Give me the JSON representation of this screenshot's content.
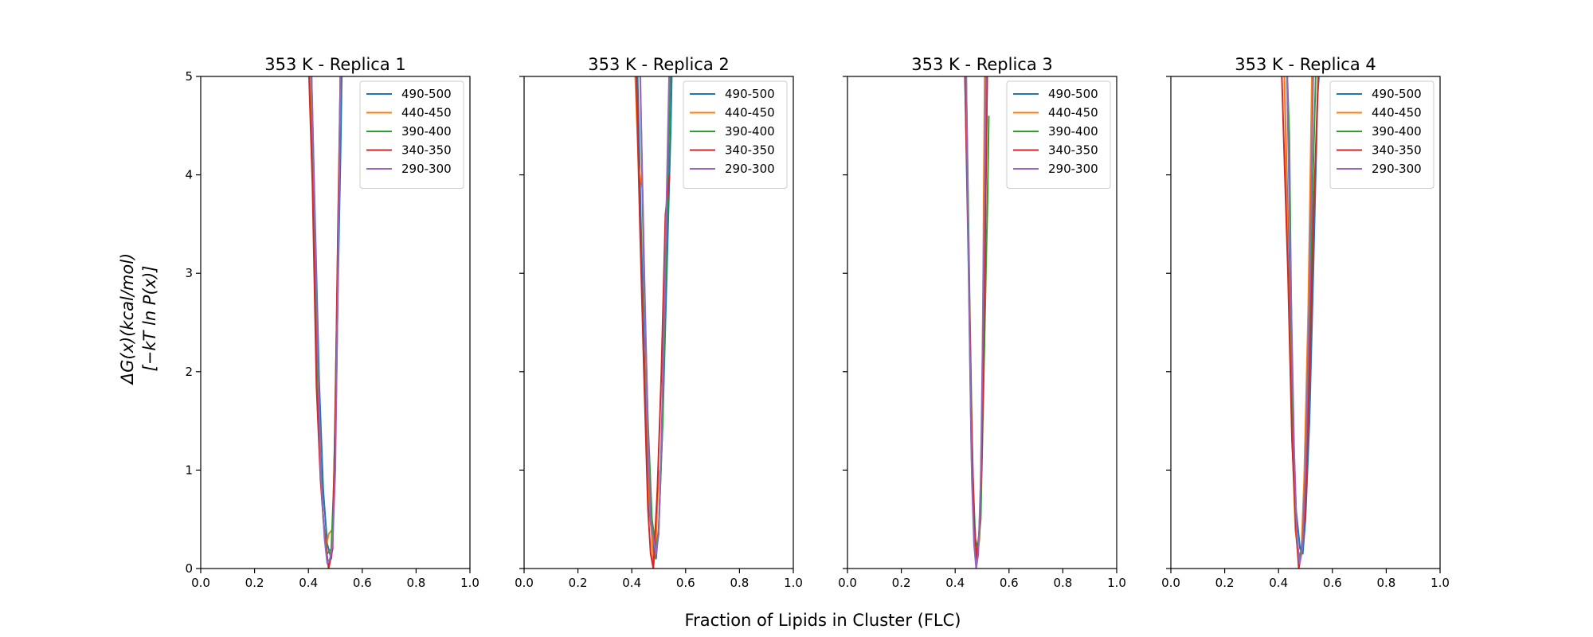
{
  "figure": {
    "supxlabel": "Fraction of Lipids in Cluster (FLC)",
    "supylabel_line1": "ΔG(x)(kcal/mol)",
    "supylabel_line2": "[−kT ln P(x)]"
  },
  "colors": {
    "490-500": "#1f77b4",
    "440-450": "#ff7f0e",
    "390-400": "#2ca02c",
    "340-350": "#d62728",
    "290-300": "#9467bd"
  },
  "chart_data": [
    {
      "type": "line",
      "title": "353 K - Replica 1",
      "xlim": [
        0.0,
        1.0
      ],
      "ylim": [
        0,
        5
      ],
      "xticks": [
        "0.0",
        "0.2",
        "0.4",
        "0.6",
        "0.8",
        "1.0"
      ],
      "yticks": [
        "0",
        "1",
        "2",
        "3",
        "4",
        "5"
      ],
      "legend": "upper right",
      "series": [
        {
          "name": "490-500",
          "x": [
            0.41,
            0.425,
            0.44,
            0.455,
            0.47,
            0.485,
            0.49,
            0.5,
            0.51,
            0.52,
            0.525
          ],
          "y": [
            5.2,
            3.5,
            1.9,
            0.8,
            0.25,
            0.1,
            0.3,
            1.2,
            2.9,
            4.3,
            5.2
          ]
        },
        {
          "name": "440-450",
          "x": [
            0.405,
            0.42,
            0.435,
            0.45,
            0.465,
            0.475,
            0.49,
            0.5,
            0.51,
            0.52
          ],
          "y": [
            5.2,
            3.8,
            2.0,
            0.7,
            0.2,
            0.35,
            0.4,
            1.5,
            3.2,
            5.2
          ]
        },
        {
          "name": "390-400",
          "x": [
            0.41,
            0.425,
            0.44,
            0.455,
            0.47,
            0.485,
            0.495,
            0.505,
            0.52
          ],
          "y": [
            5.2,
            3.0,
            1.4,
            0.5,
            0.15,
            0.2,
            0.9,
            2.5,
            5.2
          ]
        },
        {
          "name": "340-350",
          "x": [
            0.4,
            0.415,
            0.43,
            0.445,
            0.46,
            0.475,
            0.49,
            0.5,
            0.51,
            0.52
          ],
          "y": [
            5.2,
            3.9,
            1.85,
            0.9,
            0.35,
            0.0,
            0.2,
            1.6,
            3.5,
            5.2
          ]
        },
        {
          "name": "290-300",
          "x": [
            0.41,
            0.43,
            0.445,
            0.46,
            0.47,
            0.48,
            0.49,
            0.5,
            0.51,
            0.52
          ],
          "y": [
            5.2,
            2.8,
            1.0,
            0.3,
            0.05,
            0.1,
            0.25,
            1.0,
            3.0,
            5.2
          ]
        }
      ]
    },
    {
      "type": "line",
      "title": "353 K - Replica 2",
      "xlim": [
        0.0,
        1.0
      ],
      "ylim": [
        0,
        5
      ],
      "xticks": [
        "0.0",
        "0.2",
        "0.4",
        "0.6",
        "0.8",
        "1.0"
      ],
      "yticks": [
        "0",
        "1",
        "2",
        "3",
        "4",
        "5"
      ],
      "legend": "upper right",
      "series": [
        {
          "name": "490-500",
          "x": [
            0.42,
            0.435,
            0.45,
            0.465,
            0.48,
            0.49,
            0.5,
            0.515,
            0.53,
            0.545,
            0.55
          ],
          "y": [
            5.2,
            3.4,
            1.8,
            0.6,
            0.2,
            0.1,
            0.4,
            1.5,
            3.0,
            4.5,
            5.2
          ]
        },
        {
          "name": "440-450",
          "x": [
            0.41,
            0.425,
            0.44,
            0.455,
            0.465,
            0.475,
            0.48,
            0.49,
            0.5
          ],
          "y": [
            5.2,
            4.1,
            3.85,
            1.8,
            0.7,
            0.3,
            0.0,
            0.3,
            1.0
          ]
        },
        {
          "name": "390-400",
          "x": [
            0.43,
            0.445,
            0.46,
            0.475,
            0.49,
            0.5,
            0.515,
            0.525,
            0.535,
            0.545
          ],
          "y": [
            5.2,
            3.0,
            1.5,
            0.5,
            0.2,
            0.4,
            1.5,
            2.9,
            4.0,
            5.2
          ]
        },
        {
          "name": "340-350",
          "x": [
            0.415,
            0.43,
            0.445,
            0.46,
            0.47,
            0.48,
            0.495,
            0.51,
            0.525,
            0.54
          ],
          "y": [
            5.2,
            3.5,
            2.0,
            0.6,
            0.15,
            0.0,
            0.8,
            2.0,
            3.6,
            4.0
          ]
        },
        {
          "name": "290-300",
          "x": [
            0.43,
            0.445,
            0.46,
            0.47,
            0.48,
            0.49,
            0.5,
            0.51,
            0.525,
            0.54
          ],
          "y": [
            5.2,
            3.2,
            1.4,
            0.5,
            0.3,
            0.15,
            0.35,
            1.3,
            3.2,
            5.2
          ]
        }
      ]
    },
    {
      "type": "line",
      "title": "353 K - Replica 3",
      "xlim": [
        0.0,
        1.0
      ],
      "ylim": [
        0,
        5
      ],
      "xticks": [
        "0.0",
        "0.2",
        "0.4",
        "0.6",
        "0.8",
        "1.0"
      ],
      "yticks": [
        "0",
        "1",
        "2",
        "3",
        "4",
        "5"
      ],
      "legend": "upper right",
      "series": [
        {
          "name": "490-500",
          "x": [
            0.435,
            0.45,
            0.46,
            0.47,
            0.48,
            0.49,
            0.5,
            0.51,
            0.52
          ],
          "y": [
            5.2,
            3.0,
            1.2,
            0.35,
            0.1,
            0.3,
            1.4,
            3.2,
            5.2
          ]
        },
        {
          "name": "440-450",
          "x": [
            0.44,
            0.452,
            0.462,
            0.472,
            0.48,
            0.49,
            0.5,
            0.51
          ],
          "y": [
            5.2,
            2.9,
            1.1,
            0.3,
            0.05,
            0.3,
            1.6,
            5.2
          ]
        },
        {
          "name": "390-400",
          "x": [
            0.44,
            0.455,
            0.465,
            0.475,
            0.485,
            0.495,
            0.505,
            0.515,
            0.52,
            0.525
          ],
          "y": [
            5.2,
            2.5,
            1.0,
            0.3,
            0.2,
            0.5,
            1.8,
            3.1,
            3.7,
            4.6
          ]
        },
        {
          "name": "340-350",
          "x": [
            0.435,
            0.45,
            0.46,
            0.47,
            0.48,
            0.49,
            0.5,
            0.51,
            0.52
          ],
          "y": [
            5.2,
            3.2,
            1.6,
            0.5,
            0.1,
            0.4,
            1.2,
            3.0,
            5.2
          ]
        },
        {
          "name": "290-300",
          "x": [
            0.44,
            0.452,
            0.462,
            0.47,
            0.478,
            0.486,
            0.495,
            0.505,
            0.515
          ],
          "y": [
            5.2,
            2.7,
            0.9,
            0.25,
            0.0,
            0.15,
            0.9,
            2.9,
            5.2
          ]
        }
      ]
    },
    {
      "type": "line",
      "title": "353 K - Replica 4",
      "xlim": [
        0.0,
        1.0
      ],
      "ylim": [
        0,
        5
      ],
      "xticks": [
        "0.0",
        "0.2",
        "0.4",
        "0.6",
        "0.8",
        "1.0"
      ],
      "yticks": [
        "0",
        "1",
        "2",
        "3",
        "4",
        "5"
      ],
      "legend": "upper right",
      "series": [
        {
          "name": "490-500",
          "x": [
            0.42,
            0.435,
            0.45,
            0.465,
            0.48,
            0.49,
            0.5,
            0.515,
            0.53,
            0.545,
            0.555
          ],
          "y": [
            5.2,
            3.5,
            1.8,
            0.6,
            0.2,
            0.15,
            0.5,
            1.5,
            3.1,
            4.8,
            5.2
          ]
        },
        {
          "name": "440-450",
          "x": [
            0.42,
            0.435,
            0.45,
            0.462,
            0.475,
            0.485,
            0.495,
            0.51,
            0.525
          ],
          "y": [
            5.2,
            3.2,
            1.4,
            0.4,
            0.1,
            0.2,
            0.9,
            2.6,
            5.2
          ]
        },
        {
          "name": "390-400",
          "x": [
            0.43,
            0.44,
            0.45,
            0.46,
            0.47,
            0.48,
            0.49,
            0.5,
            0.515,
            0.53,
            0.54
          ],
          "y": [
            5.2,
            4.4,
            2.0,
            0.7,
            0.2,
            0.1,
            0.3,
            1.0,
            2.5,
            4.2,
            5.2
          ]
        },
        {
          "name": "340-350",
          "x": [
            0.41,
            0.42,
            0.435,
            0.45,
            0.465,
            0.475,
            0.485,
            0.5,
            0.515,
            0.53,
            0.545,
            0.55
          ],
          "y": [
            5.2,
            4.3,
            3.0,
            1.3,
            0.4,
            0.0,
            0.15,
            0.6,
            2.0,
            3.6,
            4.8,
            5.2
          ]
        },
        {
          "name": "290-300",
          "x": [
            0.43,
            0.445,
            0.458,
            0.468,
            0.478,
            0.488,
            0.5,
            0.515,
            0.53
          ],
          "y": [
            5.2,
            3.0,
            1.2,
            0.35,
            0.05,
            0.2,
            1.0,
            2.8,
            5.2
          ]
        }
      ]
    }
  ]
}
